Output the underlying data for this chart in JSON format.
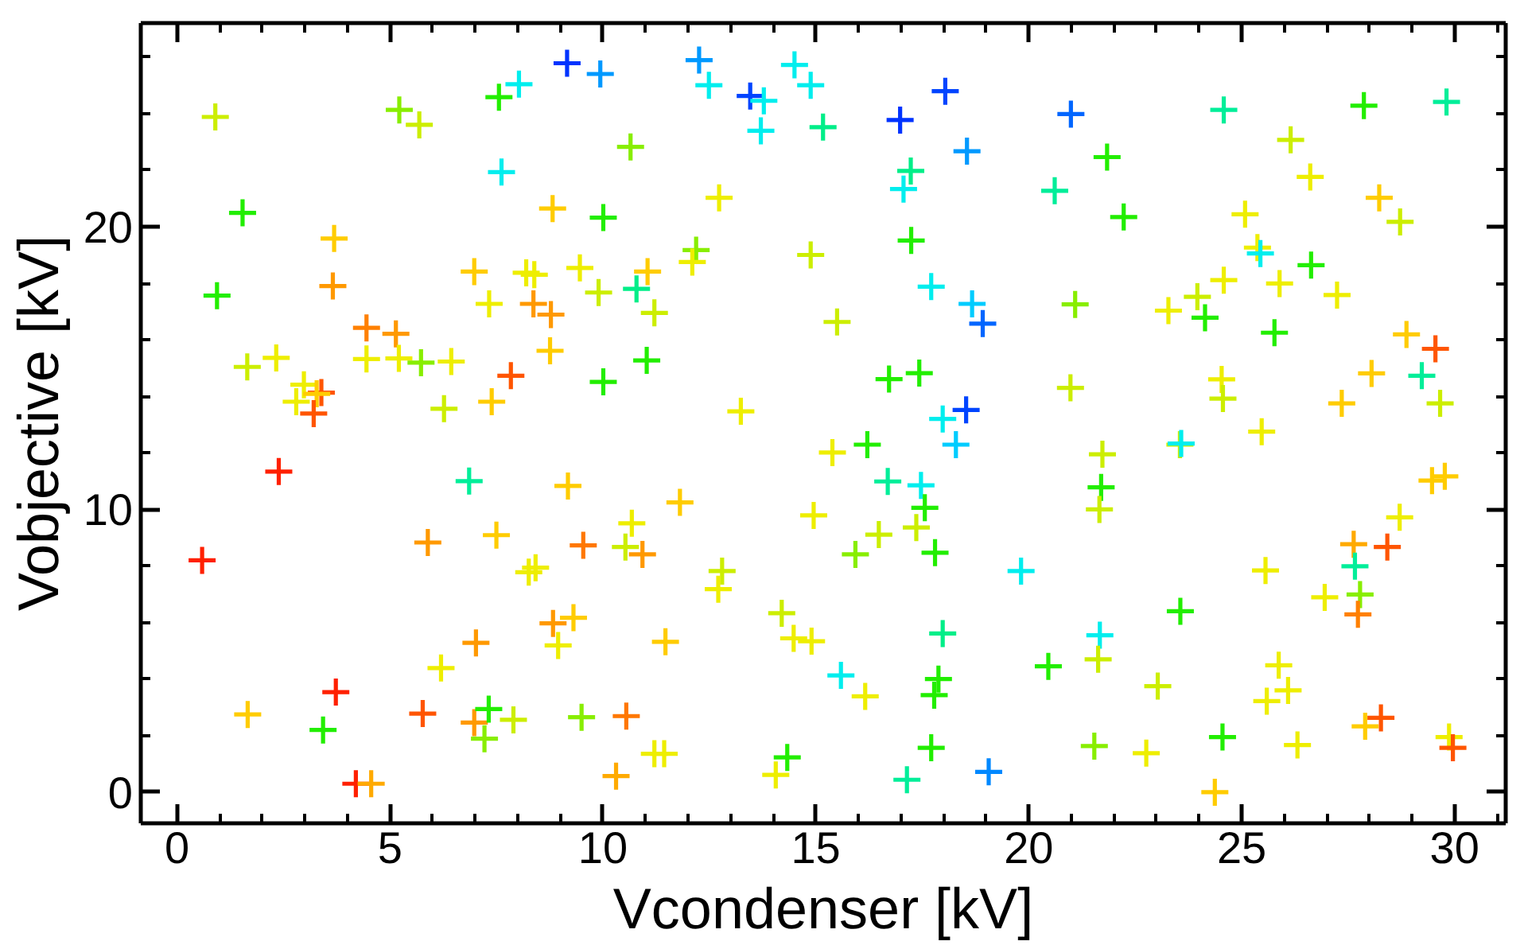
{
  "chart_data": {
    "type": "scatter",
    "xlabel": "Vcondenser [kV]",
    "ylabel": "Vobjective [kV]",
    "marker": "cross",
    "grid": false,
    "xlim": [
      -0.85,
      31.2
    ],
    "ylim": [
      -1.1,
      27.2
    ],
    "xticks": [
      0,
      {
        "value": 1,
        "label": null
      },
      {
        "value": 2,
        "label": null
      },
      {
        "value": 3,
        "label": null
      },
      {
        "value": 4,
        "label": null
      },
      5,
      {
        "value": 6,
        "label": null
      },
      {
        "value": 7,
        "label": null
      },
      {
        "value": 8,
        "label": null
      },
      {
        "value": 9,
        "label": null
      },
      10,
      {
        "value": 11,
        "label": null
      },
      {
        "value": 12,
        "label": null
      },
      {
        "value": 13,
        "label": null
      },
      {
        "value": 14,
        "label": null
      },
      15,
      {
        "value": 16,
        "label": null
      },
      {
        "value": 17,
        "label": null
      },
      {
        "value": 18,
        "label": null
      },
      {
        "value": 19,
        "label": null
      },
      20,
      {
        "value": 21,
        "label": null
      },
      {
        "value": 22,
        "label": null
      },
      {
        "value": 23,
        "label": null
      },
      {
        "value": 24,
        "label": null
      },
      25,
      {
        "value": 26,
        "label": null
      },
      {
        "value": 27,
        "label": null
      },
      {
        "value": 28,
        "label": null
      },
      {
        "value": 29,
        "label": null
      },
      30,
      {
        "value": 31,
        "label": null
      }
    ],
    "yticks": [
      0,
      {
        "value": 2,
        "label": null
      },
      {
        "value": 4,
        "label": null
      },
      {
        "value": 6,
        "label": null
      },
      {
        "value": 8,
        "label": null
      },
      10,
      {
        "value": 12,
        "label": null
      },
      {
        "value": 14,
        "label": null
      },
      {
        "value": 16,
        "label": null
      },
      {
        "value": 18,
        "label": null
      },
      20,
      {
        "value": 22,
        "label": null
      },
      {
        "value": 24,
        "label": null
      },
      {
        "value": 26,
        "label": null
      }
    ],
    "x": [
      0.9,
      5.22,
      5.69,
      7.56,
      8.03,
      9.16,
      9.94,
      7.62,
      1.54,
      8.82,
      10.01,
      3.69,
      0.94,
      3.66,
      6.98,
      8.2,
      8.39,
      9.46,
      9.9,
      7.33,
      8.37,
      8.78,
      4.45,
      5.14,
      1.65,
      2.33,
      4.45,
      5.21,
      5.73,
      6.44,
      8.76,
      10.01,
      7.84,
      2.98,
      3.39,
      3.28,
      2.8,
      3.21,
      6.27,
      7.39,
      12.26,
      12.49,
      13.46,
      13.78,
      14.5,
      14.88,
      13.71,
      15.17,
      16.98,
      18.04,
      18.55,
      10.65,
      17.23,
      17.06,
      12.73,
      17.24,
      12.19,
      12.1,
      14.88,
      11.05,
      10.79,
      11.21,
      17.71,
      18.67,
      18.92,
      15.5,
      11.03,
      16.72,
      17.43,
      13.24,
      17.98,
      18.53,
      20.99,
      24.58,
      27.87,
      29.81,
      21.84,
      26.15,
      26.61,
      20.61,
      22.23,
      25.08,
      28.23,
      28.72,
      25.37,
      25.44,
      26.63,
      24.58,
      25.89,
      27.24,
      21.09,
      23.28,
      23.96,
      24.14,
      25.77,
      28.87,
      29.55,
      28.05,
      29.23,
      20.98,
      24.53,
      24.56,
      27.35,
      29.66,
      2.39,
      6.86,
      9.18,
      0.59,
      5.89,
      7.5,
      9.54,
      8.26,
      8.42,
      8.83,
      9.31,
      8.95,
      7.02,
      6.2,
      3.73,
      1.66,
      3.43,
      5.77,
      6.98,
      7.32,
      7.22,
      7.9,
      9.5,
      4.2,
      4.56,
      18.29,
      15.39,
      16.21,
      16.69,
      17.47,
      17.56,
      11.81,
      14.95,
      10.68,
      16.48,
      17.36,
      10.53,
      10.93,
      15.93,
      17.8,
      19.82,
      12.8,
      12.71,
      14.2,
      14.48,
      14.9,
      17.98,
      11.47,
      20.46,
      15.59,
      16.16,
      17.88,
      17.78,
      10.55,
      11.21,
      11.44,
      14.33,
      14.06,
      10.31,
      17.71,
      17.14,
      19.06,
      25.47,
      21.73,
      23.55,
      23.58,
      21.7,
      21.66,
      29.47,
      29.77,
      28.71,
      27.63,
      28.42,
      27.66,
      25.56,
      26.95,
      27.78,
      27.73,
      23.56,
      21.67,
      21.63,
      25.87,
      26.09,
      25.59,
      23.03,
      21.54,
      22.76,
      24.55,
      26.31,
      24.37,
      27.9,
      28.27,
      29.87,
      29.96
    ],
    "values": [
      23.88,
      24.13,
      23.6,
      24.58,
      25.04,
      25.78,
      25.4,
      21.93,
      20.49,
      20.64,
      20.32,
      19.58,
      17.56,
      17.9,
      18.41,
      18.37,
      18.3,
      18.54,
      17.67,
      17.27,
      17.27,
      16.89,
      16.42,
      16.21,
      15.04,
      15.36,
      15.32,
      15.34,
      15.19,
      15.23,
      15.61,
      14.51,
      14.73,
      14.41,
      14.13,
      14.09,
      13.81,
      13.39,
      13.56,
      13.81,
      25.89,
      25.0,
      24.62,
      24.45,
      25.72,
      25.0,
      23.39,
      23.52,
      23.77,
      24.79,
      22.67,
      22.82,
      21.97,
      21.33,
      21.02,
      19.51,
      19.17,
      18.75,
      19.0,
      18.41,
      17.8,
      16.95,
      17.88,
      17.27,
      16.57,
      16.63,
      15.27,
      14.61,
      14.82,
      13.47,
      13.2,
      13.52,
      23.98,
      24.13,
      24.28,
      24.41,
      22.46,
      23.07,
      21.76,
      21.27,
      20.34,
      20.44,
      21.02,
      20.17,
      19.26,
      19.05,
      18.64,
      18.11,
      17.99,
      17.58,
      17.25,
      17.03,
      17.52,
      16.78,
      16.25,
      16.19,
      15.68,
      14.81,
      14.73,
      14.3,
      14.6,
      13.92,
      13.75,
      13.75,
      11.34,
      11.0,
      10.83,
      8.2,
      8.83,
      9.09,
      8.73,
      7.78,
      7.94,
      5.97,
      6.17,
      5.19,
      5.28,
      4.39,
      3.54,
      2.75,
      2.2,
      2.78,
      2.46,
      2.94,
      1.89,
      2.56,
      2.65,
      0.3,
      0.3,
      12.29,
      12.01,
      12.29,
      10.99,
      10.85,
      10.06,
      10.25,
      9.79,
      9.51,
      9.11,
      9.36,
      8.67,
      8.41,
      8.41,
      8.47,
      7.82,
      7.82,
      7.18,
      6.33,
      5.44,
      5.34,
      5.61,
      5.32,
      4.45,
      4.13,
      3.39,
      4.0,
      3.43,
      2.69,
      1.36,
      1.36,
      1.23,
      0.61,
      0.57,
      1.57,
      0.44,
      0.72,
      12.75,
      11.95,
      12.29,
      12.33,
      10.78,
      10.0,
      11.02,
      11.17,
      9.72,
      8.77,
      8.67,
      7.99,
      7.84,
      6.89,
      6.99,
      6.29,
      6.4,
      5.55,
      4.7,
      4.49,
      3.6,
      3.22,
      3.75,
      1.63,
      1.38,
      1.95,
      1.67,
      0.0,
      2.33,
      2.63,
      1.95,
      1.57
    ],
    "colors": [
      "#ccee00",
      "#88ee00",
      "#ccee00",
      "#22ee00",
      "#00eeee",
      "#0033ff",
      "#0099ff",
      "#00eeee",
      "#22ee00",
      "#ffcc00",
      "#22ee00",
      "#ffcc00",
      "#22ee00",
      "#ff9900",
      "#ffcc00",
      "#eeee00",
      "#eeee00",
      "#eeee00",
      "#ccee00",
      "#eeee00",
      "#ff9900",
      "#ff9900",
      "#ff8000",
      "#ff9900",
      "#ccee00",
      "#eeee00",
      "#eeee00",
      "#eeee00",
      "#88ee00",
      "#eeee00",
      "#ffcc00",
      "#22ee00",
      "#ff5500",
      "#eeee00",
      "#ff5500",
      "#ffcc00",
      "#eeee00",
      "#ff5500",
      "#ccee00",
      "#ffcc00",
      "#0099ff",
      "#00eeee",
      "#0044ff",
      "#00eeee",
      "#00eeee",
      "#00eeee",
      "#00eeee",
      "#00ee88",
      "#0033ff",
      "#0044ff",
      "#0099ff",
      "#88ee00",
      "#00ee88",
      "#00eeee",
      "#eeee00",
      "#22ee00",
      "#88ee00",
      "#eeee00",
      "#ccee00",
      "#ffcc00",
      "#00ee88",
      "#ccee00",
      "#00eeee",
      "#00ccff",
      "#0066ff",
      "#ccee00",
      "#22ee00",
      "#22ee00",
      "#22ee00",
      "#eeee00",
      "#00eeee",
      "#0044ff",
      "#0066ff",
      "#00ee99",
      "#22ee00",
      "#00ee99",
      "#22ee00",
      "#ccee00",
      "#eeee00",
      "#00ee99",
      "#22ee00",
      "#eeee00",
      "#ffcc00",
      "#ccee00",
      "#eeee00",
      "#00eeee",
      "#22ee00",
      "#eeee00",
      "#eeee00",
      "#eeee00",
      "#88ee00",
      "#eeee00",
      "#ccee00",
      "#22ee00",
      "#22ee00",
      "#ffcc00",
      "#ff5500",
      "#ffcc00",
      "#00ee99",
      "#ccee00",
      "#eeee00",
      "#ccee00",
      "#ffcc00",
      "#ccee00",
      "#ff2000",
      "#00ee99",
      "#ffcc00",
      "#ff2000",
      "#ff9900",
      "#ffcc00",
      "#ff7700",
      "#eeee00",
      "#eeee00",
      "#ff9900",
      "#ffcc00",
      "#eeee00",
      "#ff9900",
      "#eeee00",
      "#ff2000",
      "#ffcc00",
      "#22ee00",
      "#ff5500",
      "#ff9900",
      "#22ee00",
      "#88ee00",
      "#ccee00",
      "#88ee00",
      "#ff2000",
      "#ffaa00",
      "#00ccff",
      "#eeee00",
      "#22ee00",
      "#00ee99",
      "#00eeee",
      "#22ee00",
      "#ffcc00",
      "#eeee00",
      "#eeee00",
      "#ccee00",
      "#ccee00",
      "#ccee00",
      "#ff9900",
      "#88ee00",
      "#22ee00",
      "#00eeee",
      "#ccee00",
      "#eeee00",
      "#ccee00",
      "#eeee00",
      "#eeee00",
      "#00ee88",
      "#ffcc00",
      "#22ee00",
      "#00eeee",
      "#eeee00",
      "#22ee00",
      "#22ee00",
      "#ff7700",
      "#eeee00",
      "#eeee00",
      "#22ee00",
      "#eeee00",
      "#ffaa00",
      "#22ee00",
      "#00ee99",
      "#0088ff",
      "#eeee00",
      "#ccee00",
      "#ccee00",
      "#00eeee",
      "#22ee00",
      "#ccee00",
      "#ffcc00",
      "#ffcc00",
      "#eeee00",
      "#ffaa00",
      "#ff5500",
      "#00ee99",
      "#eeee00",
      "#eeee00",
      "#88ee00",
      "#ff8000",
      "#22ee00",
      "#00eeee",
      "#ccee00",
      "#eeee00",
      "#eeee00",
      "#eeee00",
      "#ccee00",
      "#88ee00",
      "#eeee00",
      "#22ee00",
      "#eeee00",
      "#ffcc00",
      "#ffcc00",
      "#ff5500",
      "#eeee00",
      "#ff5500"
    ]
  }
}
